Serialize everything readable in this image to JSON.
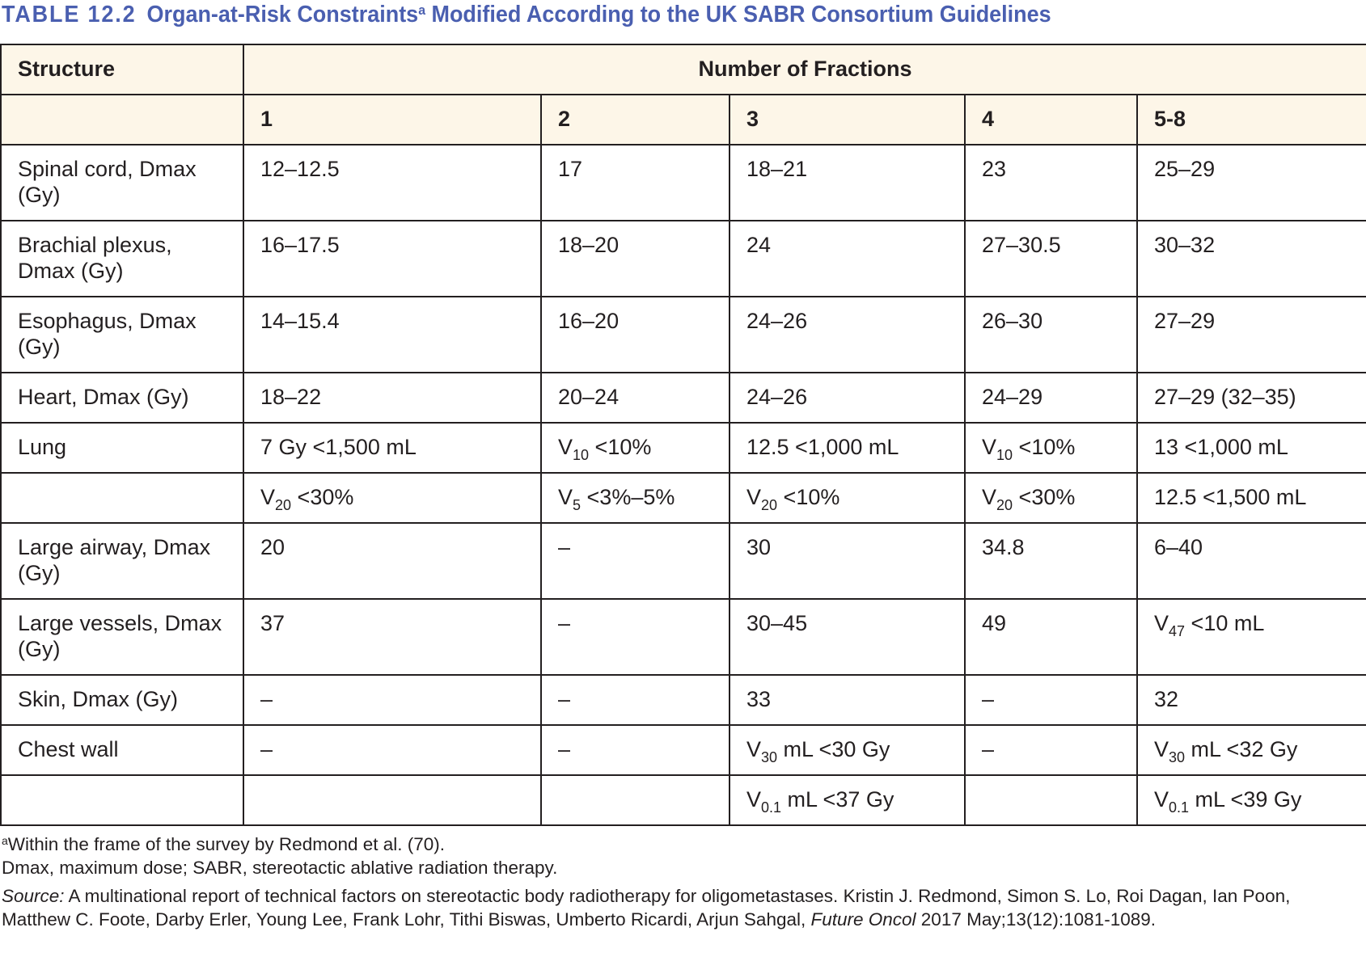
{
  "title": {
    "number": "TABLE 12.2",
    "text": "Organ-at-Risk Constraints",
    "sup": "a",
    "text_after": " Modified According to the UK SABR Consortium Guidelines"
  },
  "colors": {
    "title": "#4a5fb0",
    "header_bg": "#fdf6e8",
    "border": "#231f20"
  },
  "table": {
    "header_structure": "Structure",
    "header_fractions": "Number of Fractions",
    "fraction_columns": [
      "1",
      "2",
      "3",
      "4",
      "5-8"
    ],
    "rows": [
      {
        "structure": "Spinal cord, Dmax (Gy)",
        "tall": true,
        "cells": [
          "12–12.5",
          "17",
          "18–21",
          " 23",
          "25–29"
        ]
      },
      {
        "structure": "Brachial plexus, Dmax (Gy)",
        "tall": true,
        "cells": [
          "16–17.5",
          "18–20",
          "24",
          "27–30.5",
          "30–32"
        ]
      },
      {
        "structure": "Esophagus, Dmax (Gy)",
        "tall": true,
        "cells": [
          "14–15.4",
          "16–20",
          "24–26",
          "26–30",
          "27–29"
        ]
      },
      {
        "structure": "Heart, Dmax (Gy)",
        "tall": false,
        "cells": [
          "18–22",
          "20–24",
          "24–26",
          "24–29",
          "27–29 (32–35)"
        ]
      },
      {
        "structure": "Lung",
        "tall": false,
        "cells": [
          "7 Gy <1,500 mL",
          {
            "base": "V",
            "sub": "10",
            "rest": " <10%"
          },
          "12.5 <1,000 mL",
          {
            "base": "V",
            "sub": "10",
            "rest": " <10%"
          },
          "13 <1,000 mL"
        ]
      },
      {
        "structure": "",
        "tall": false,
        "cells": [
          {
            "base": "V",
            "sub": "20",
            "rest": " <30%"
          },
          {
            "base": "V",
            "sub": "5",
            "rest": " <3%–5%"
          },
          {
            "base": "V",
            "sub": "20",
            "rest": " <10%"
          },
          {
            "base": "V",
            "sub": "20",
            "rest": " <30%"
          },
          "12.5 <1,500 mL"
        ]
      },
      {
        "structure": "Large airway, Dmax (Gy)",
        "tall": true,
        "cells": [
          "20",
          "–",
          "30",
          "34.8",
          "6–40"
        ]
      },
      {
        "structure": "Large vessels, Dmax (Gy)",
        "tall": true,
        "cells": [
          "37",
          "–",
          "30–45",
          "49",
          {
            "base": "V",
            "sub": "47",
            "rest": " <10 mL"
          }
        ]
      },
      {
        "structure": "Skin, Dmax (Gy)",
        "tall": false,
        "cells": [
          "–",
          "–",
          "33",
          "–",
          "32"
        ]
      },
      {
        "structure": "Chest wall",
        "tall": false,
        "cells": [
          "–",
          "–",
          {
            "base": "V",
            "sub": "30",
            "rest": " mL <30 Gy"
          },
          "–",
          {
            "base": "V",
            "sub": "30",
            "rest": " mL <32 Gy"
          }
        ]
      },
      {
        "structure": "",
        "tall": false,
        "cells": [
          "",
          "",
          {
            "base": "V",
            "sub": "0.1",
            "rest": " mL <37 Gy"
          },
          "",
          {
            "base": "V",
            "sub": "0.1",
            "rest": " mL <39 Gy"
          }
        ]
      }
    ]
  },
  "notes": {
    "footnote_marker": "a",
    "footnote": "Within the frame of the survey by Redmond et al. (70).",
    "abbreviations": "Dmax, maximum dose; SABR, stereotactic ablative radiation therapy.",
    "source_label": "Source:",
    "source_text": " A multinational report of technical factors on stereotactic body radiotherapy for oligometastases. Kristin J. Redmond, Simon S. Lo, Roi Dagan, Ian Poon, Matthew C. Foote, Darby Erler, Young Lee, Frank Lohr, Tithi Biswas, Umberto Ricardi, Arjun Sahgal, ",
    "journal": "Future Oncol",
    "citation_tail": " 2017 May;13(12):1081-1089."
  }
}
